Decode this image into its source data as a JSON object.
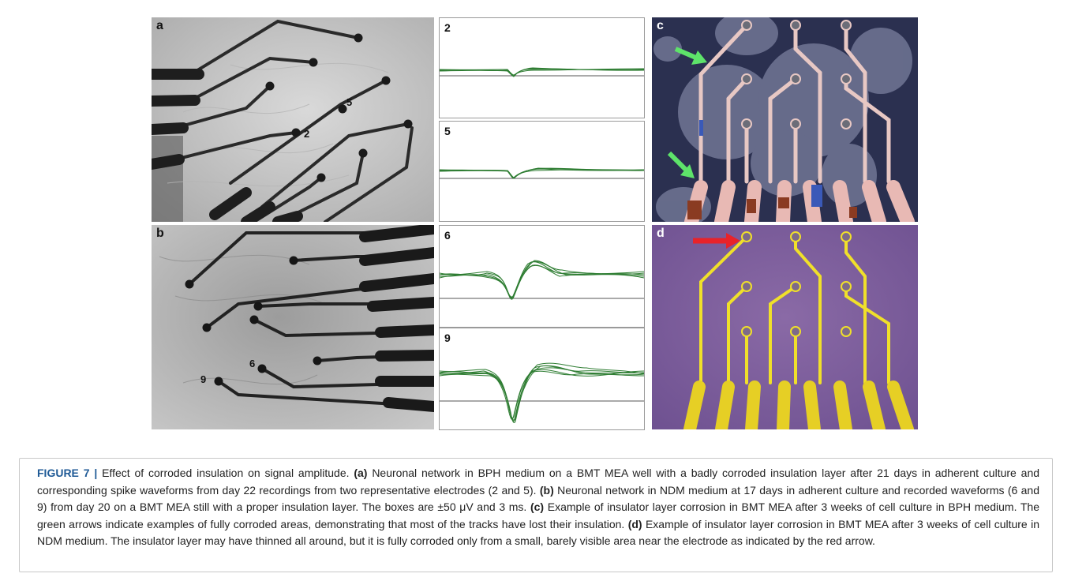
{
  "figure": {
    "panels": [
      {
        "id": "a",
        "letter": "a",
        "electrodes": [
          "5",
          "2"
        ]
      },
      {
        "id": "b",
        "letter": "b",
        "electrodes": [
          "6",
          "9"
        ]
      },
      {
        "id": "c",
        "letter": "c"
      },
      {
        "id": "d",
        "letter": "d"
      }
    ],
    "waveforms": [
      {
        "label": "2"
      },
      {
        "label": "5"
      },
      {
        "label": "6"
      },
      {
        "label": "9"
      }
    ],
    "colors": {
      "waveform": "#2e7d32",
      "green_arrow": "#5ee36a",
      "red_arrow": "#e8232a",
      "caption_title": "#1f5a96"
    }
  },
  "caption": {
    "title": "FIGURE 7 |",
    "intro": " Effect of corroded insulation on signal amplitude. ",
    "a_tag": "(a)",
    "a_text": " Neuronal network in BPH medium on a BMT MEA well with a badly corroded insulation layer after 21 days in adherent culture and corresponding spike waveforms from day 22 recordings from two representative electrodes (2 and 5). ",
    "b_tag": "(b)",
    "b_text": " Neuronal network in NDM medium at 17 days in adherent culture and recorded waveforms (6 and 9) from day 20 on a BMT MEA still with a proper insulation layer. The boxes are ±50 μV and 3 ms. ",
    "c_tag": "(c)",
    "c_text": " Example of insulator layer corrosion in BMT MEA after 3 weeks of cell culture in BPH medium. The green arrows indicate examples of fully corroded areas, demonstrating that most of the tracks have lost their insulation. ",
    "d_tag": "(d)",
    "d_text": " Example of insulator layer corrosion in BMT MEA after 3 weeks of cell culture in NDM medium. The insulator layer may have thinned all around, but it is fully corroded only from a small, barely visible area near the electrode as indicated by the red arrow."
  }
}
